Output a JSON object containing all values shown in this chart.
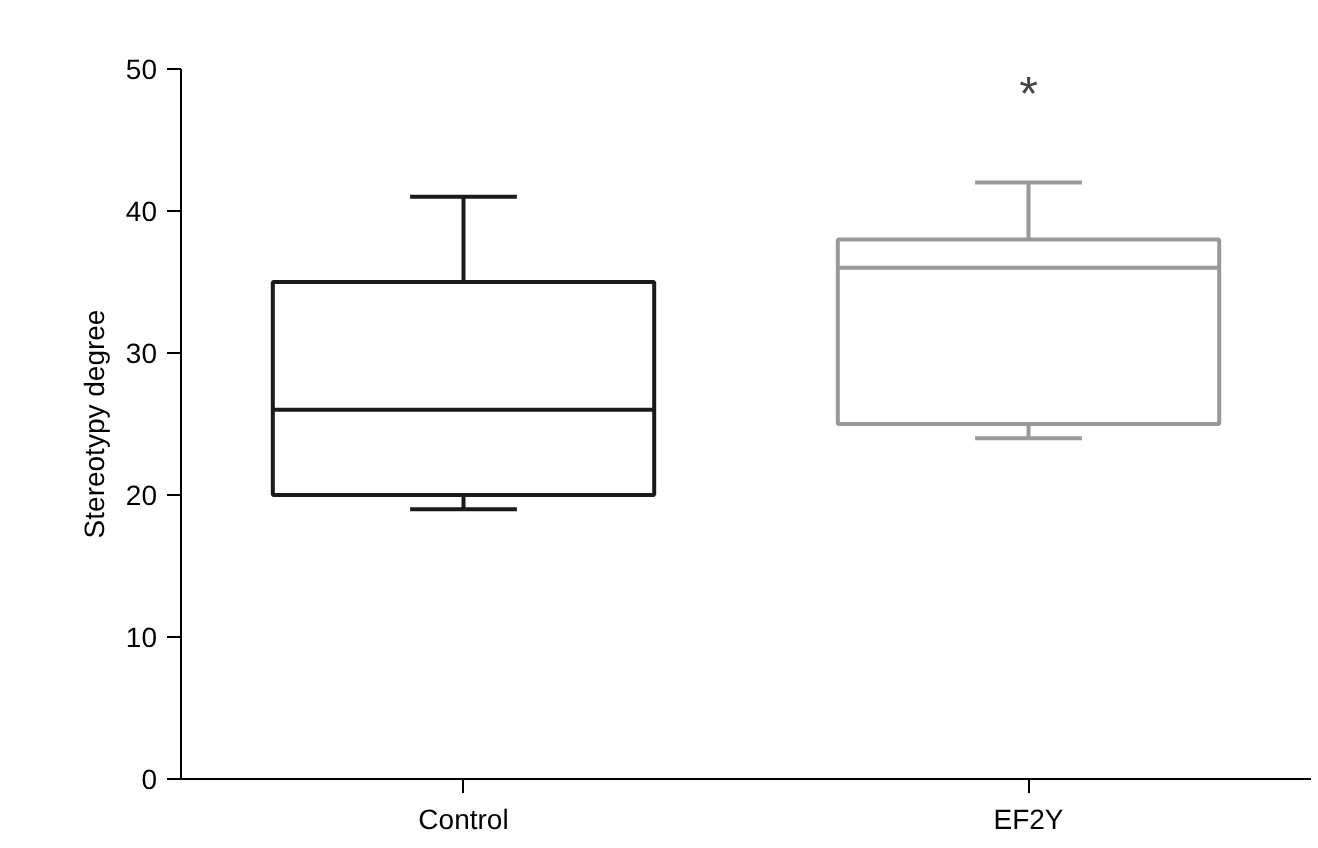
{
  "chart_data": {
    "type": "box",
    "ylabel": "Stereotypy degree",
    "categories": [
      "Control",
      "EF2Y"
    ],
    "boxes": [
      {
        "low": 19,
        "q1": 20,
        "median": 26,
        "q3": 35,
        "high": 41
      },
      {
        "low": 24,
        "q1": 25,
        "median": 36,
        "q3": 38,
        "high": 42
      }
    ],
    "colors": [
      "#1a1a1a",
      "#999999"
    ],
    "ylim": [
      0,
      50
    ],
    "yticks": [
      0,
      10,
      20,
      30,
      40,
      50
    ],
    "grid": false,
    "annotations": [
      "*"
    ]
  }
}
